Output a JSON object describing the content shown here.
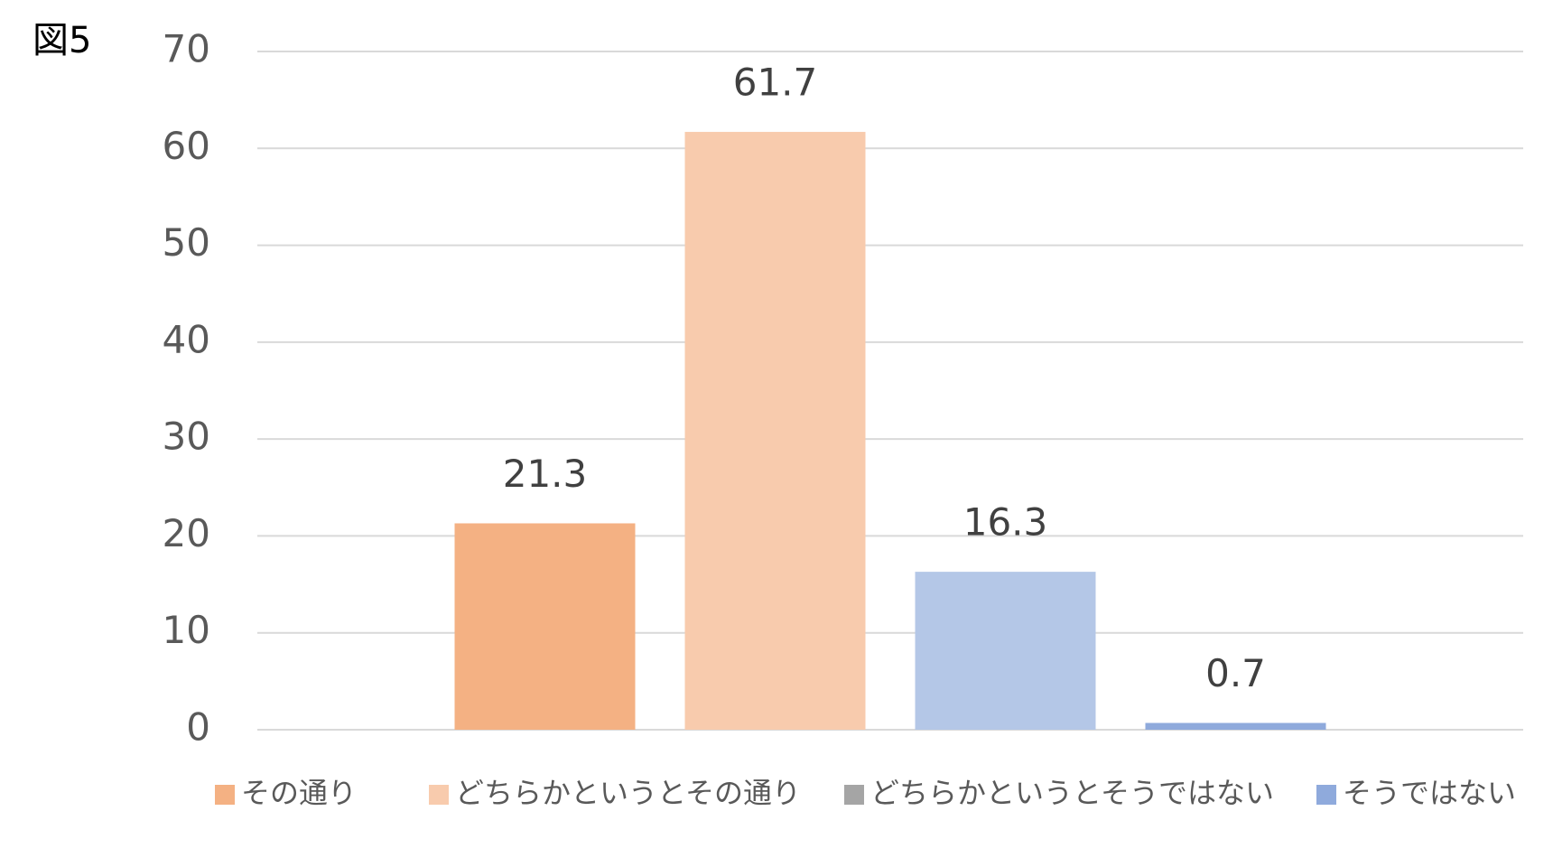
{
  "chart_data": {
    "type": "bar",
    "title": "図5",
    "series": [
      {
        "name": "その通り",
        "color": "#f4b183",
        "legend_color": "#f4b183",
        "values": [
          21.3
        ]
      },
      {
        "name": "どちらかというとその通り",
        "color": "#f8cbad",
        "legend_color": "#f8cbad",
        "values": [
          61.7
        ]
      },
      {
        "name": "どちらかというとそうではない",
        "color": "#b4c7e7",
        "legend_color": "#a5a5a5",
        "values": [
          16.3
        ]
      },
      {
        "name": "そうではない",
        "color": "#8faadc",
        "legend_color": "#8faadc",
        "values": [
          0.7
        ]
      }
    ],
    "ylim": [
      0,
      70
    ],
    "yticks": [
      0,
      10,
      20,
      30,
      40,
      50,
      60,
      70
    ],
    "grid": true,
    "legend": "bottom"
  }
}
